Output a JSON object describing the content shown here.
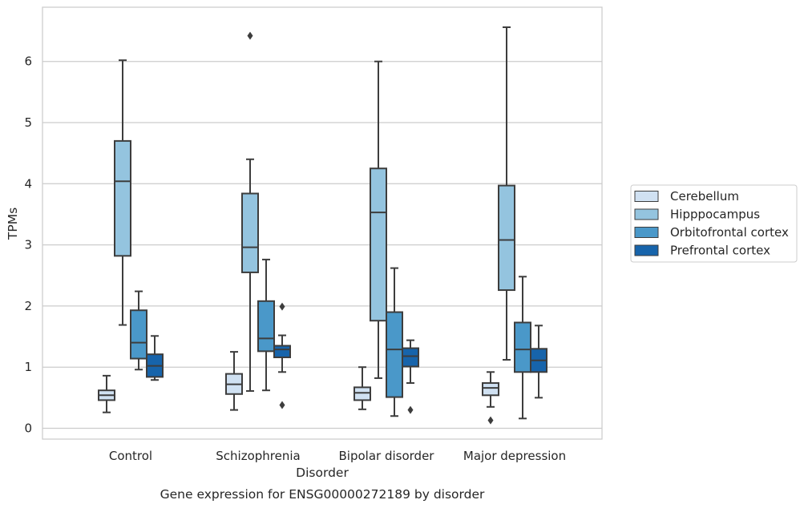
{
  "chart_data": {
    "type": "boxplot",
    "xlabel": "Disorder",
    "ylabel": "TPMs",
    "caption": "Gene expression for ENSG00000272189 by disorder",
    "ylim": [
      -0.18,
      6.9
    ],
    "yticks": [
      0,
      1,
      2,
      3,
      4,
      5,
      6
    ],
    "grid": "horizontal",
    "legend_position": "right, outside plot",
    "categories": [
      "Control",
      "Schizophrenia",
      "Bipolar disorder",
      "Major depression"
    ],
    "series": [
      {
        "name": "Cerebellum",
        "color": "#d0e1f2",
        "boxes": [
          {
            "whislo": 0.26,
            "q1": 0.46,
            "med": 0.54,
            "q3": 0.62,
            "whishi": 0.86,
            "fliers": []
          },
          {
            "whislo": 0.3,
            "q1": 0.56,
            "med": 0.72,
            "q3": 0.89,
            "whishi": 1.25,
            "fliers": []
          },
          {
            "whislo": 0.31,
            "q1": 0.46,
            "med": 0.58,
            "q3": 0.67,
            "whishi": 1.0,
            "fliers": []
          },
          {
            "whislo": 0.35,
            "q1": 0.54,
            "med": 0.66,
            "q3": 0.74,
            "whishi": 0.92,
            "fliers": [
              0.13
            ]
          }
        ]
      },
      {
        "name": "Hipppocampus",
        "color": "#94c4df",
        "boxes": [
          {
            "whislo": 1.69,
            "q1": 2.82,
            "med": 4.04,
            "q3": 4.7,
            "whishi": 6.02,
            "fliers": []
          },
          {
            "whislo": 0.61,
            "q1": 2.55,
            "med": 2.96,
            "q3": 3.84,
            "whishi": 4.4,
            "fliers": [
              6.42
            ]
          },
          {
            "whislo": 0.82,
            "q1": 1.76,
            "med": 3.53,
            "q3": 4.25,
            "whishi": 6.0,
            "fliers": []
          },
          {
            "whislo": 1.12,
            "q1": 2.26,
            "med": 3.08,
            "q3": 3.97,
            "whishi": 6.56,
            "fliers": []
          }
        ]
      },
      {
        "name": "Orbitofrontal cortex",
        "color": "#4a98c9",
        "boxes": [
          {
            "whislo": 0.96,
            "q1": 1.14,
            "med": 1.4,
            "q3": 1.93,
            "whishi": 2.24,
            "fliers": []
          },
          {
            "whislo": 0.62,
            "q1": 1.26,
            "med": 1.47,
            "q3": 2.08,
            "whishi": 2.76,
            "fliers": []
          },
          {
            "whislo": 0.2,
            "q1": 0.51,
            "med": 1.29,
            "q3": 1.9,
            "whishi": 2.62,
            "fliers": []
          },
          {
            "whislo": 0.16,
            "q1": 0.92,
            "med": 1.29,
            "q3": 1.73,
            "whishi": 2.48,
            "fliers": []
          }
        ]
      },
      {
        "name": "Prefrontal cortex",
        "color": "#1764ab",
        "boxes": [
          {
            "whislo": 0.79,
            "q1": 0.84,
            "med": 1.02,
            "q3": 1.21,
            "whishi": 1.51,
            "fliers": []
          },
          {
            "whislo": 0.92,
            "q1": 1.16,
            "med": 1.29,
            "q3": 1.35,
            "whishi": 1.52,
            "fliers": [
              1.99,
              0.38
            ]
          },
          {
            "whislo": 0.74,
            "q1": 1.01,
            "med": 1.18,
            "q3": 1.31,
            "whishi": 1.44,
            "fliers": [
              0.3
            ]
          },
          {
            "whislo": 0.5,
            "q1": 0.92,
            "med": 1.11,
            "q3": 1.3,
            "whishi": 1.68,
            "fliers": []
          }
        ]
      }
    ]
  }
}
